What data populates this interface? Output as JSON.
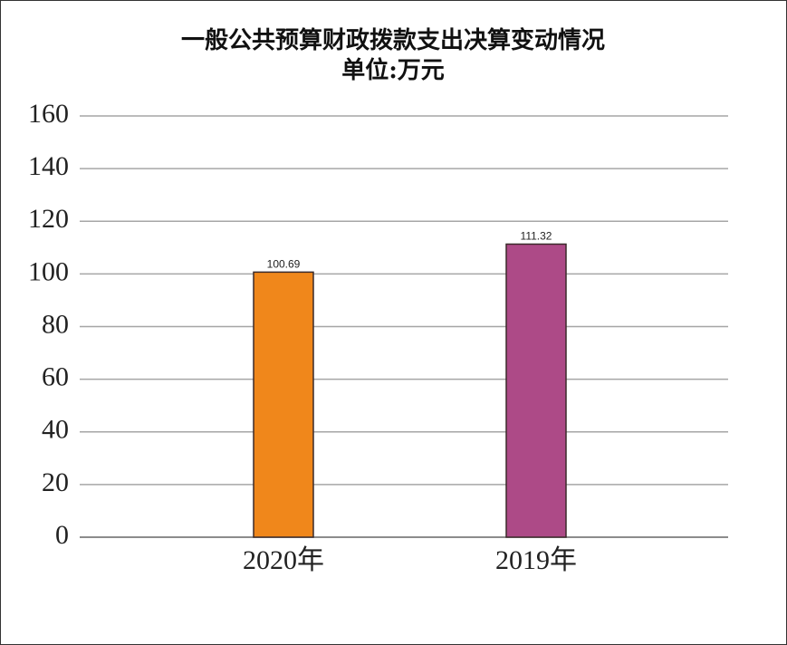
{
  "chart_data": {
    "type": "bar",
    "title": "一般公共预算财政拨款支出决算变动情况",
    "subtitle": "单位:万元",
    "categories": [
      "2020年",
      "2019年"
    ],
    "values": [
      100.69,
      111.32
    ],
    "colors": [
      "#f0871b",
      "#ad4a87"
    ],
    "ylim": [
      0,
      160
    ],
    "yticks": [
      0,
      20,
      40,
      60,
      80,
      100,
      120,
      140,
      160
    ],
    "grid": true
  }
}
